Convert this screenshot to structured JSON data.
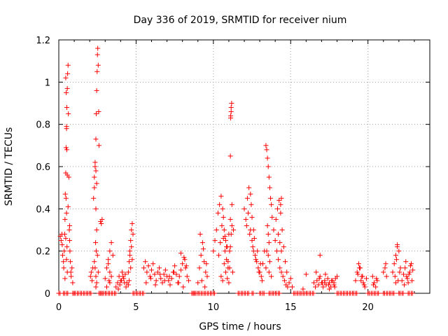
{
  "chart_data": {
    "type": "scatter",
    "title": "Day 336 of 2019, SRMTID for receiver nium",
    "xlabel": "GPS time / hours",
    "ylabel": "SRMTID / TECUs",
    "xlim": [
      0,
      24
    ],
    "ylim": [
      0,
      1.2
    ],
    "xticks": [
      0,
      5,
      10,
      15,
      20
    ],
    "xtick_labels": [
      "0",
      "5",
      "10",
      "15",
      "20"
    ],
    "yticks": [
      0,
      0.2,
      0.4,
      0.6,
      0.8,
      1.0,
      1.2
    ],
    "ytick_labels": [
      "0",
      "0.2",
      "0.4",
      "0.6",
      "0.8",
      "1",
      "1.2"
    ],
    "grid": true,
    "marker": "+",
    "color": "#ff0000",
    "series": [
      {
        "name": "SRMTID",
        "x": [
          0.1,
          0.15,
          0.2,
          0.22,
          0.25,
          0.3,
          0.32,
          0.35,
          0.38,
          0.4,
          0.42,
          0.45,
          0.47,
          0.5,
          0.52,
          0.55,
          0.57,
          0.6,
          0.62,
          0.65,
          0.68,
          0.7,
          0.72,
          0.75,
          0.78,
          0.8,
          0.85,
          0.9,
          0.45,
          0.48,
          0.5,
          0.52,
          0.55,
          0.47,
          0.5,
          0.53,
          0.5,
          0.55,
          0.4,
          0.45,
          0.6,
          0.7,
          2.05,
          2.1,
          2.15,
          2.2,
          2.25,
          2.3,
          2.35,
          2.4,
          2.42,
          2.45,
          2.48,
          2.5,
          2.52,
          2.55,
          2.58,
          2.6,
          2.3,
          2.35,
          2.4,
          2.45,
          2.4,
          2.45,
          2.38,
          2.42,
          2.3,
          2.35,
          2.4,
          2.45,
          2.4,
          2.5,
          2.55,
          2.7,
          2.75,
          2.8,
          3.0,
          3.1,
          3.2,
          3.3,
          3.4,
          3.5,
          3.2,
          3.3,
          3.4,
          3.3,
          3.1,
          3.25,
          3.7,
          3.8,
          3.9,
          4.0,
          4.1,
          4.2,
          4.3,
          4.4,
          4.5,
          3.85,
          3.95,
          4.05,
          4.15,
          4.25,
          4.35,
          4.5,
          4.55,
          4.6,
          4.65,
          4.7,
          4.75,
          4.8,
          4.6,
          4.7,
          4.65,
          4.55,
          4.75,
          5.5,
          5.6,
          5.7,
          5.8,
          5.9,
          6.0,
          6.1,
          6.2,
          6.3,
          6.4,
          6.5,
          6.6,
          6.7,
          6.8,
          6.9,
          7.0,
          7.1,
          7.2,
          7.3,
          7.4,
          7.5,
          7.6,
          7.7,
          7.8,
          7.9,
          8.0,
          8.1,
          8.2,
          8.3,
          8.4,
          5.65,
          5.95,
          6.25,
          6.55,
          6.85,
          7.15,
          7.45,
          7.75,
          8.05,
          8.25,
          7.9,
          8.15,
          9.0,
          9.1,
          9.2,
          9.3,
          9.4,
          9.5,
          9.6,
          9.15,
          9.35,
          9.55,
          9.25,
          9.45,
          10.0,
          10.1,
          10.2,
          10.3,
          10.4,
          10.5,
          10.6,
          10.7,
          10.8,
          10.9,
          11.0,
          11.1,
          11.2,
          11.3,
          10.35,
          10.45,
          10.55,
          10.65,
          10.75,
          10.85,
          10.95,
          11.05,
          11.15,
          11.25,
          10.5,
          10.6,
          10.7,
          10.8,
          10.9,
          11.0,
          11.1,
          11.12,
          11.15,
          11.18,
          11.12,
          11.15,
          11.1,
          11.2,
          10.65,
          10.75,
          10.85,
          10.95,
          11.05,
          12.0,
          12.1,
          12.2,
          12.3,
          12.4,
          12.5,
          12.6,
          12.7,
          12.8,
          12.9,
          13.0,
          13.1,
          13.2,
          13.3,
          12.15,
          12.35,
          12.55,
          12.75,
          12.95,
          13.15,
          12.25,
          12.45,
          12.65,
          12.85,
          13.05,
          12.4,
          12.5,
          12.6,
          13.4,
          13.45,
          13.5,
          13.55,
          13.6,
          13.65,
          13.7,
          13.75,
          13.8,
          13.5,
          13.55,
          13.6,
          13.45,
          13.55,
          13.65,
          13.4,
          13.6,
          13.75,
          13.9,
          14.0,
          14.1,
          14.2,
          14.3,
          14.4,
          14.5,
          14.6,
          14.7,
          14.8,
          14.9,
          15.0,
          15.1,
          14.05,
          14.15,
          14.25,
          14.35,
          14.45,
          14.55,
          14.65,
          14.75,
          14.2,
          14.3,
          14.4,
          14.35,
          14.4,
          15.8,
          16.0,
          16.5,
          16.6,
          16.7,
          16.8,
          16.9,
          17.0,
          17.1,
          17.2,
          17.3,
          17.4,
          17.5,
          17.6,
          17.7,
          17.8,
          17.9,
          18.0,
          16.65,
          16.85,
          17.05,
          17.25,
          17.45,
          17.65,
          17.85,
          16.9,
          17.2,
          17.5,
          17.8,
          19.2,
          19.3,
          19.4,
          19.5,
          19.6,
          19.7,
          19.8,
          19.9,
          19.35,
          19.55,
          19.75,
          19.45,
          19.65,
          20.3,
          20.4,
          20.5,
          20.6,
          20.35,
          20.55,
          21.0,
          21.1,
          21.2,
          21.15,
          21.6,
          21.7,
          21.8,
          21.9,
          22.0,
          22.1,
          21.75,
          21.95,
          21.85,
          22.05,
          21.8,
          21.9,
          22.2,
          22.3,
          22.4,
          22.5,
          22.6,
          22.7,
          22.8,
          22.9,
          22.35,
          22.55,
          22.75,
          22.45,
          22.65,
          22.85
        ],
        "y": [
          0.27,
          0.25,
          0.28,
          0.23,
          0.18,
          0.15,
          0.12,
          0.2,
          0.28,
          0.35,
          0.47,
          0.57,
          0.69,
          0.79,
          0.88,
          0.97,
          1.04,
          1.08,
          0.85,
          0.55,
          0.3,
          0.25,
          0.2,
          0.15,
          0.1,
          0.08,
          0.12,
          0.05,
          1.02,
          0.95,
          0.78,
          0.68,
          0.56,
          0.45,
          0.38,
          0.22,
          0.16,
          0.1,
          0.07,
          0.26,
          0.41,
          0.32,
          0.08,
          0.1,
          0.06,
          0.12,
          0.45,
          0.55,
          0.6,
          0.73,
          0.85,
          0.96,
          1.05,
          1.13,
          1.16,
          1.08,
          0.86,
          0.7,
          0.5,
          0.62,
          0.58,
          0.52,
          0.4,
          0.3,
          0.24,
          0.2,
          0.15,
          0.12,
          0.08,
          0.05,
          0.03,
          0.18,
          0.1,
          0.34,
          0.33,
          0.35,
          0.07,
          0.12,
          0.16,
          0.2,
          0.24,
          0.18,
          0.14,
          0.1,
          0.08,
          0.05,
          0.03,
          0.06,
          0.03,
          0.05,
          0.08,
          0.06,
          0.1,
          0.07,
          0.09,
          0.05,
          0.04,
          0.02,
          0.04,
          0.06,
          0.08,
          0.05,
          0.03,
          0.1,
          0.15,
          0.2,
          0.25,
          0.3,
          0.33,
          0.28,
          0.18,
          0.22,
          0.12,
          0.06,
          0.16,
          0.12,
          0.15,
          0.1,
          0.13,
          0.08,
          0.11,
          0.14,
          0.09,
          0.06,
          0.1,
          0.12,
          0.07,
          0.05,
          0.09,
          0.11,
          0.08,
          0.06,
          0.04,
          0.07,
          0.1,
          0.13,
          0.09,
          0.05,
          0.08,
          0.11,
          0.14,
          0.17,
          0.12,
          0.08,
          0.06,
          0.05,
          0.07,
          0.04,
          0.09,
          0.06,
          0.08,
          0.1,
          0.05,
          0.03,
          0.13,
          0.19,
          0.16,
          0.05,
          0.12,
          0.18,
          0.24,
          0.15,
          0.1,
          0.08,
          0.28,
          0.21,
          0.14,
          0.06,
          0.03,
          0.2,
          0.25,
          0.3,
          0.38,
          0.42,
          0.46,
          0.4,
          0.3,
          0.25,
          0.22,
          0.28,
          0.35,
          0.42,
          0.3,
          0.18,
          0.24,
          0.32,
          0.26,
          0.2,
          0.16,
          0.12,
          0.2,
          0.28,
          0.1,
          0.08,
          0.06,
          0.14,
          0.1,
          0.07,
          0.05,
          0.65,
          0.83,
          0.86,
          0.9,
          0.84,
          0.88,
          0.22,
          0.32,
          0.36,
          0.27,
          0.22,
          0.15,
          0.12,
          0.4,
          0.35,
          0.45,
          0.5,
          0.3,
          0.25,
          0.2,
          0.18,
          0.15,
          0.12,
          0.1,
          0.08,
          0.14,
          0.2,
          0.32,
          0.28,
          0.22,
          0.16,
          0.1,
          0.06,
          0.38,
          0.42,
          0.26,
          0.2,
          0.14,
          0.47,
          0.36,
          0.3,
          0.7,
          0.68,
          0.64,
          0.6,
          0.55,
          0.5,
          0.45,
          0.42,
          0.36,
          0.32,
          0.28,
          0.24,
          0.2,
          0.18,
          0.15,
          0.12,
          0.1,
          0.08,
          0.3,
          0.25,
          0.2,
          0.16,
          0.12,
          0.1,
          0.08,
          0.06,
          0.04,
          0.03,
          0.05,
          0.07,
          0.03,
          0.35,
          0.4,
          0.44,
          0.38,
          0.3,
          0.22,
          0.15,
          0.1,
          0.28,
          0.24,
          0.2,
          0.42,
          0.45,
          0.02,
          0.09,
          0.05,
          0.03,
          0.06,
          0.04,
          0.08,
          0.05,
          0.03,
          0.06,
          0.04,
          0.07,
          0.05,
          0.03,
          0.06,
          0.04,
          0.07,
          0.08,
          0.1,
          0.07,
          0.05,
          0.09,
          0.04,
          0.06,
          0.03,
          0.18,
          0.05,
          0.02,
          0.05,
          0.06,
          0.1,
          0.14,
          0.12,
          0.08,
          0.05,
          0.03,
          0.07,
          0.09,
          0.06,
          0.04,
          0.12,
          0.08,
          0.08,
          0.05,
          0.03,
          0.06,
          0.04,
          0.07,
          0.1,
          0.12,
          0.08,
          0.14,
          0.1,
          0.14,
          0.18,
          0.22,
          0.2,
          0.12,
          0.08,
          0.06,
          0.16,
          0.1,
          0.05,
          0.23,
          0.06,
          0.09,
          0.12,
          0.08,
          0.05,
          0.1,
          0.14,
          0.11,
          0.04,
          0.07,
          0.13,
          0.15,
          0.09,
          0.06
        ]
      }
    ],
    "zero_values_x": [
      0.0,
      0.3,
      0.5,
      0.9,
      1.0,
      1.2,
      1.4,
      1.6,
      1.8,
      2.0,
      2.6,
      2.7,
      2.8,
      3.0,
      3.2,
      3.4,
      3.6,
      4.8,
      5.0,
      5.2,
      5.4,
      8.6,
      8.7,
      8.8,
      9.0,
      9.2,
      9.4,
      9.6,
      9.8,
      10.0,
      11.6,
      11.8,
      12.0,
      12.2,
      12.5,
      13.0,
      13.2,
      13.6,
      13.8,
      14.0,
      14.2,
      15.2,
      15.4,
      15.6,
      15.8,
      16.0,
      16.2,
      16.4,
      18.0,
      18.2,
      18.4,
      18.6,
      18.8,
      19.0,
      19.2,
      20.0,
      20.2,
      20.4,
      20.6,
      21.0,
      21.2,
      21.4,
      21.6,
      22.0,
      22.2,
      22.6,
      22.8
    ]
  }
}
